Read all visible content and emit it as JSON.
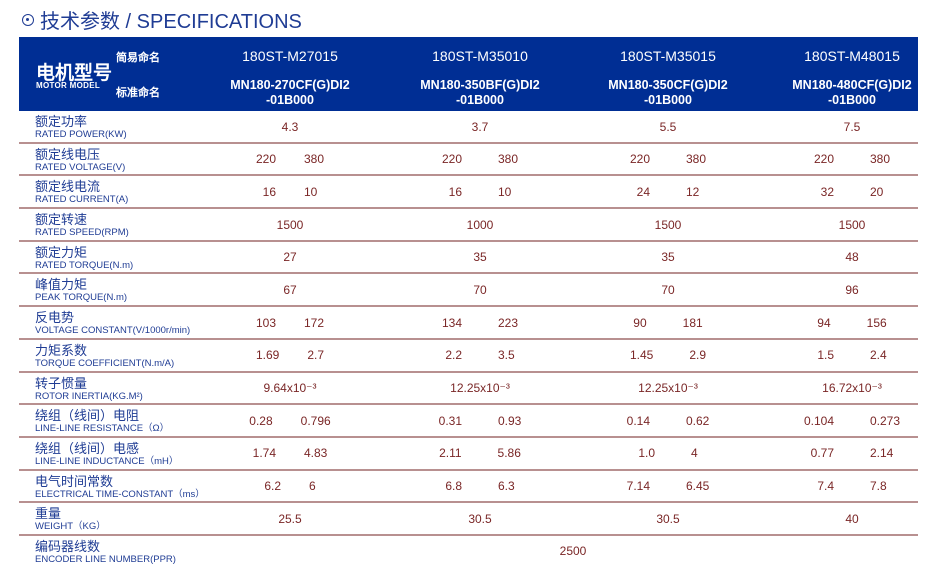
{
  "title": "技术参数 / SPECIFICATIONS",
  "header": {
    "model_cn": "电机型号",
    "model_en": "MOTOR MODEL",
    "short_label": "简易命名",
    "std_label": "标准命名",
    "models": [
      {
        "short": "180ST-M27015",
        "std1": "MN180-270CF(G)DI2",
        "std2": "-01B000"
      },
      {
        "short": "180ST-M35010",
        "std1": "MN180-350BF(G)DI2",
        "std2": "-01B000"
      },
      {
        "short": "180ST-M35015",
        "std1": "MN180-350CF(G)DI2",
        "std2": "-01B000"
      },
      {
        "short": "180ST-M48015",
        "std1": "MN180-480CF(G)DI2",
        "std2": "-01B000"
      }
    ]
  },
  "rows": [
    {
      "cn": "额定功率",
      "en": "RATED POWER(KW)",
      "values": [
        [
          "4.3"
        ],
        [
          "3.7"
        ],
        [
          "5.5"
        ],
        [
          "7.5"
        ]
      ]
    },
    {
      "cn": "额定线电压",
      "en": "RATED VOLTAGE(V)",
      "values": [
        [
          "220",
          "380"
        ],
        [
          "220",
          "380"
        ],
        [
          "220",
          "380"
        ],
        [
          "220",
          "380"
        ]
      ]
    },
    {
      "cn": "额定线电流",
      "en": "RATED CURRENT(A)",
      "values": [
        [
          "16",
          "10"
        ],
        [
          "16",
          "10"
        ],
        [
          "24",
          "12"
        ],
        [
          "32",
          "20"
        ]
      ]
    },
    {
      "cn": "额定转速",
      "en": "RATED SPEED(RPM)",
      "values": [
        [
          "1500"
        ],
        [
          "1000"
        ],
        [
          "1500"
        ],
        [
          "1500"
        ]
      ]
    },
    {
      "cn": "额定力矩",
      "en": "RATED TORQUE(N.m)",
      "values": [
        [
          "27"
        ],
        [
          "35"
        ],
        [
          "35"
        ],
        [
          "48"
        ]
      ]
    },
    {
      "cn": "峰值力矩",
      "en": "PEAK TORQUE(N.m)",
      "values": [
        [
          "67"
        ],
        [
          "70"
        ],
        [
          "70"
        ],
        [
          "96"
        ]
      ]
    },
    {
      "cn": "反电势",
      "en": "VOLTAGE CONSTANT(V/1000r/min)",
      "values": [
        [
          "103",
          "172"
        ],
        [
          "134",
          "223"
        ],
        [
          "90",
          "181"
        ],
        [
          "94",
          "156"
        ]
      ]
    },
    {
      "cn": "力矩系数",
      "en": "TORQUE COEFFICIENT(N.m/A)",
      "values": [
        [
          "1.69",
          "2.7"
        ],
        [
          "2.2",
          "3.5"
        ],
        [
          "1.45",
          "2.9"
        ],
        [
          "1.5",
          "2.4"
        ]
      ]
    },
    {
      "cn": "转子惯量",
      "en": "ROTOR INERTIA(KG.M²)",
      "values": [
        [
          "9.64x10⁻³"
        ],
        [
          "12.25x10⁻³"
        ],
        [
          "12.25x10⁻³"
        ],
        [
          "16.72x10⁻³"
        ]
      ]
    },
    {
      "cn": "绕组（线间）电阻",
      "en": "LINE-LINE RESISTANCE（Ω）",
      "values": [
        [
          "0.28",
          "0.796"
        ],
        [
          "0.31",
          "0.93"
        ],
        [
          "0.14",
          "0.62"
        ],
        [
          "0.104",
          "0.273"
        ]
      ]
    },
    {
      "cn": "绕组（线间）电感",
      "en": "LINE-LINE INDUCTANCE（mH）",
      "values": [
        [
          "1.74",
          "4.83"
        ],
        [
          "2.11",
          "5.86"
        ],
        [
          "1.0",
          "4"
        ],
        [
          "0.77",
          "2.14"
        ]
      ]
    },
    {
      "cn": "电气时间常数",
      "en": "ELECTRICAL TIME-CONSTANT（ms）",
      "values": [
        [
          "6.2",
          "6"
        ],
        [
          "6.8",
          "6.3"
        ],
        [
          "7.14",
          "6.45"
        ],
        [
          "7.4",
          "7.8"
        ]
      ]
    },
    {
      "cn": "重量",
      "en": "WEIGHT（KG）",
      "values": [
        [
          "25.5"
        ],
        [
          "30.5"
        ],
        [
          "30.5"
        ],
        [
          "40"
        ]
      ]
    },
    {
      "cn": "编码器线数",
      "en": "ENCODER LINE NUMBER(PPR)",
      "span_value": "2500"
    }
  ]
}
